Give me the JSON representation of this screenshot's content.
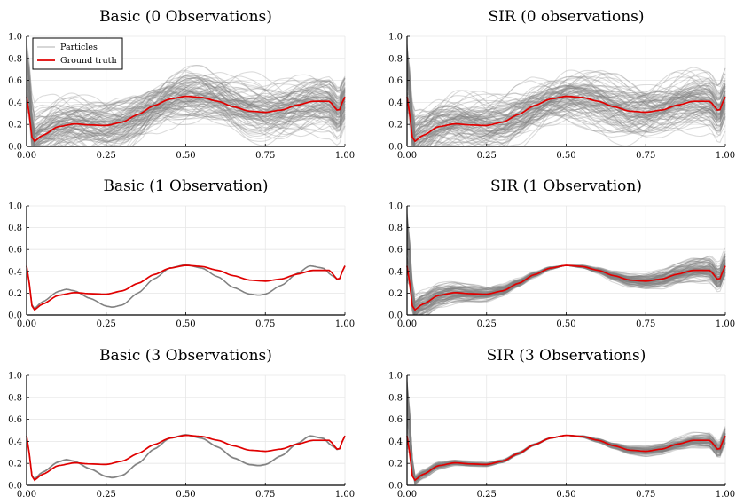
{
  "legend": {
    "particles_label": "Particles",
    "ground_truth_label": "Ground truth"
  },
  "colors": {
    "particle": "#808080",
    "truth": "#e00000",
    "grid": "#e6e6e6",
    "axis": "#000000"
  },
  "chart_data": [
    {
      "type": "line",
      "title": "Basic (0 Observations)",
      "method": "Basic",
      "observations": 0,
      "particle_count": 100,
      "particle_spread": 0.95,
      "particle_alpha": 0.28,
      "show_legend": true,
      "xlim": [
        0,
        1
      ],
      "ylim": [
        0,
        1.0
      ],
      "xticks": [
        0.0,
        0.25,
        0.5,
        0.75,
        1.0
      ],
      "xtick_labels": [
        "0.00",
        "0.25",
        "0.50",
        "0.75",
        "1.00"
      ],
      "yticks": [
        0.0,
        0.2,
        0.4,
        0.6,
        0.8,
        1.0
      ],
      "ytick_labels": [
        "0.0",
        "0.2",
        "0.4",
        "0.6",
        "0.8",
        "1.0"
      ]
    },
    {
      "type": "line",
      "title": "SIR (0 observations)",
      "method": "SIR",
      "observations": 0,
      "particle_count": 100,
      "particle_spread": 0.95,
      "particle_alpha": 0.28,
      "show_legend": false,
      "xlim": [
        0,
        1
      ],
      "ylim": [
        0,
        1.0
      ],
      "xticks": [
        0.0,
        0.25,
        0.5,
        0.75,
        1.0
      ],
      "xtick_labels": [
        "0.00",
        "0.25",
        "0.50",
        "0.75",
        "1.00"
      ],
      "yticks": [
        0.0,
        0.2,
        0.4,
        0.6,
        0.8,
        1.0
      ],
      "ytick_labels": [
        "0.0",
        "0.2",
        "0.4",
        "0.6",
        "0.8",
        "1.0"
      ]
    },
    {
      "type": "line",
      "title": "Basic (1 Observation)",
      "method": "Basic",
      "observations": 1,
      "particle_count": 6,
      "particle_spread": 0.004,
      "particle_alpha": 0.6,
      "show_legend": false,
      "xlim": [
        0,
        1
      ],
      "ylim": [
        0,
        1.0
      ],
      "xticks": [
        0.0,
        0.25,
        0.5,
        0.75,
        1.0
      ],
      "xtick_labels": [
        "0.00",
        "0.25",
        "0.50",
        "0.75",
        "1.00"
      ],
      "yticks": [
        0.0,
        0.2,
        0.4,
        0.6,
        0.8,
        1.0
      ],
      "ytick_labels": [
        "0.0",
        "0.2",
        "0.4",
        "0.6",
        "0.8",
        "1.0"
      ]
    },
    {
      "type": "line",
      "title": "SIR (1 Observation)",
      "method": "SIR",
      "observations": 1,
      "particle_count": 90,
      "particle_spread": 0.55,
      "particle_alpha": 0.3,
      "show_legend": false,
      "xlim": [
        0,
        1
      ],
      "ylim": [
        0,
        1.0
      ],
      "xticks": [
        0.0,
        0.25,
        0.5,
        0.75,
        1.0
      ],
      "xtick_labels": [
        "0.00",
        "0.25",
        "0.50",
        "0.75",
        "1.00"
      ],
      "yticks": [
        0.0,
        0.2,
        0.4,
        0.6,
        0.8,
        1.0
      ],
      "ytick_labels": [
        "0.0",
        "0.2",
        "0.4",
        "0.6",
        "0.8",
        "1.0"
      ]
    },
    {
      "type": "line",
      "title": "Basic (3 Observations)",
      "method": "Basic",
      "observations": 3,
      "particle_count": 6,
      "particle_spread": 0.004,
      "particle_alpha": 0.6,
      "show_legend": false,
      "xlim": [
        0,
        1
      ],
      "ylim": [
        0,
        1.0
      ],
      "xticks": [
        0.0,
        0.25,
        0.5,
        0.75,
        1.0
      ],
      "xtick_labels": [
        "0.00",
        "0.25",
        "0.50",
        "0.75",
        "1.00"
      ],
      "yticks": [
        0.0,
        0.2,
        0.4,
        0.6,
        0.8,
        1.0
      ],
      "ytick_labels": [
        "0.0",
        "0.2",
        "0.4",
        "0.6",
        "0.8",
        "1.0"
      ]
    },
    {
      "type": "line",
      "title": "SIR (3 Observations)",
      "method": "SIR",
      "observations": 3,
      "particle_count": 70,
      "particle_spread": 0.35,
      "particle_alpha": 0.3,
      "show_legend": false,
      "xlim": [
        0,
        1
      ],
      "ylim": [
        0,
        1.0
      ],
      "xticks": [
        0.0,
        0.25,
        0.5,
        0.75,
        1.0
      ],
      "xtick_labels": [
        "0.00",
        "0.25",
        "0.50",
        "0.75",
        "1.00"
      ],
      "yticks": [
        0.0,
        0.2,
        0.4,
        0.6,
        0.8,
        1.0
      ],
      "ytick_labels": [
        "0.0",
        "0.2",
        "0.4",
        "0.6",
        "0.8",
        "1.0"
      ]
    }
  ],
  "ground_truth": {
    "x": [
      0.0,
      0.02,
      0.05,
      0.1,
      0.15,
      0.2,
      0.25,
      0.3,
      0.35,
      0.4,
      0.45,
      0.5,
      0.55,
      0.6,
      0.65,
      0.7,
      0.75,
      0.8,
      0.85,
      0.9,
      0.95,
      0.98,
      1.0
    ],
    "y": [
      0.45,
      0.04,
      0.1,
      0.18,
      0.205,
      0.195,
      0.19,
      0.22,
      0.29,
      0.37,
      0.43,
      0.455,
      0.445,
      0.41,
      0.36,
      0.32,
      0.31,
      0.33,
      0.375,
      0.41,
      0.41,
      0.32,
      0.45
    ]
  },
  "particle_mean_curve": {
    "x": [
      0.0,
      0.02,
      0.05,
      0.1,
      0.125,
      0.15,
      0.2,
      0.25,
      0.27,
      0.3,
      0.35,
      0.4,
      0.45,
      0.5,
      0.55,
      0.6,
      0.65,
      0.7,
      0.73,
      0.75,
      0.8,
      0.85,
      0.89,
      0.93,
      0.96,
      0.98,
      1.0
    ],
    "y": [
      0.45,
      0.05,
      0.12,
      0.215,
      0.235,
      0.22,
      0.15,
      0.08,
      0.07,
      0.09,
      0.2,
      0.33,
      0.43,
      0.46,
      0.43,
      0.35,
      0.25,
      0.19,
      0.18,
      0.19,
      0.27,
      0.38,
      0.45,
      0.43,
      0.36,
      0.32,
      0.45
    ]
  }
}
